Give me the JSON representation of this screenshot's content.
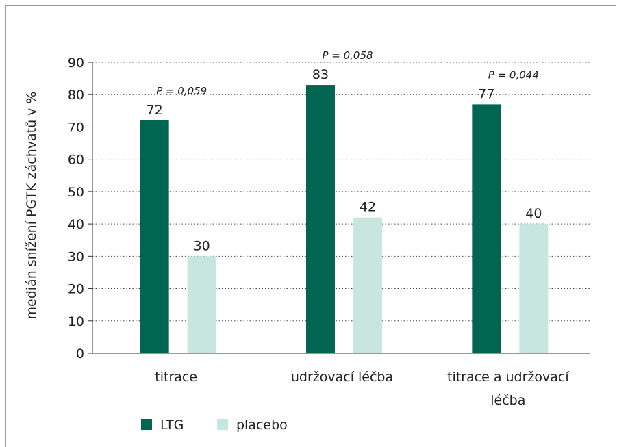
{
  "chart_data": {
    "type": "bar",
    "ylabel": "medián snížení PGTK záchvatů v %",
    "ylim": [
      0,
      90
    ],
    "yticks": [
      0,
      10,
      20,
      30,
      40,
      50,
      60,
      70,
      80,
      90
    ],
    "grid": true,
    "categories": [
      [
        "titrace"
      ],
      [
        "udržovací léčba"
      ],
      [
        "titrace a udržovací",
        "léčba"
      ]
    ],
    "series": [
      {
        "name": "LTG",
        "values": [
          72,
          83,
          77
        ],
        "color": "#006651"
      },
      {
        "name": "placebo",
        "values": [
          30,
          42,
          40
        ],
        "color": "#c8e6e0"
      }
    ],
    "annotations": [
      "P = 0,059",
      "P = 0,058",
      "P = 0,044"
    ],
    "legend_position": "bottom-left"
  }
}
